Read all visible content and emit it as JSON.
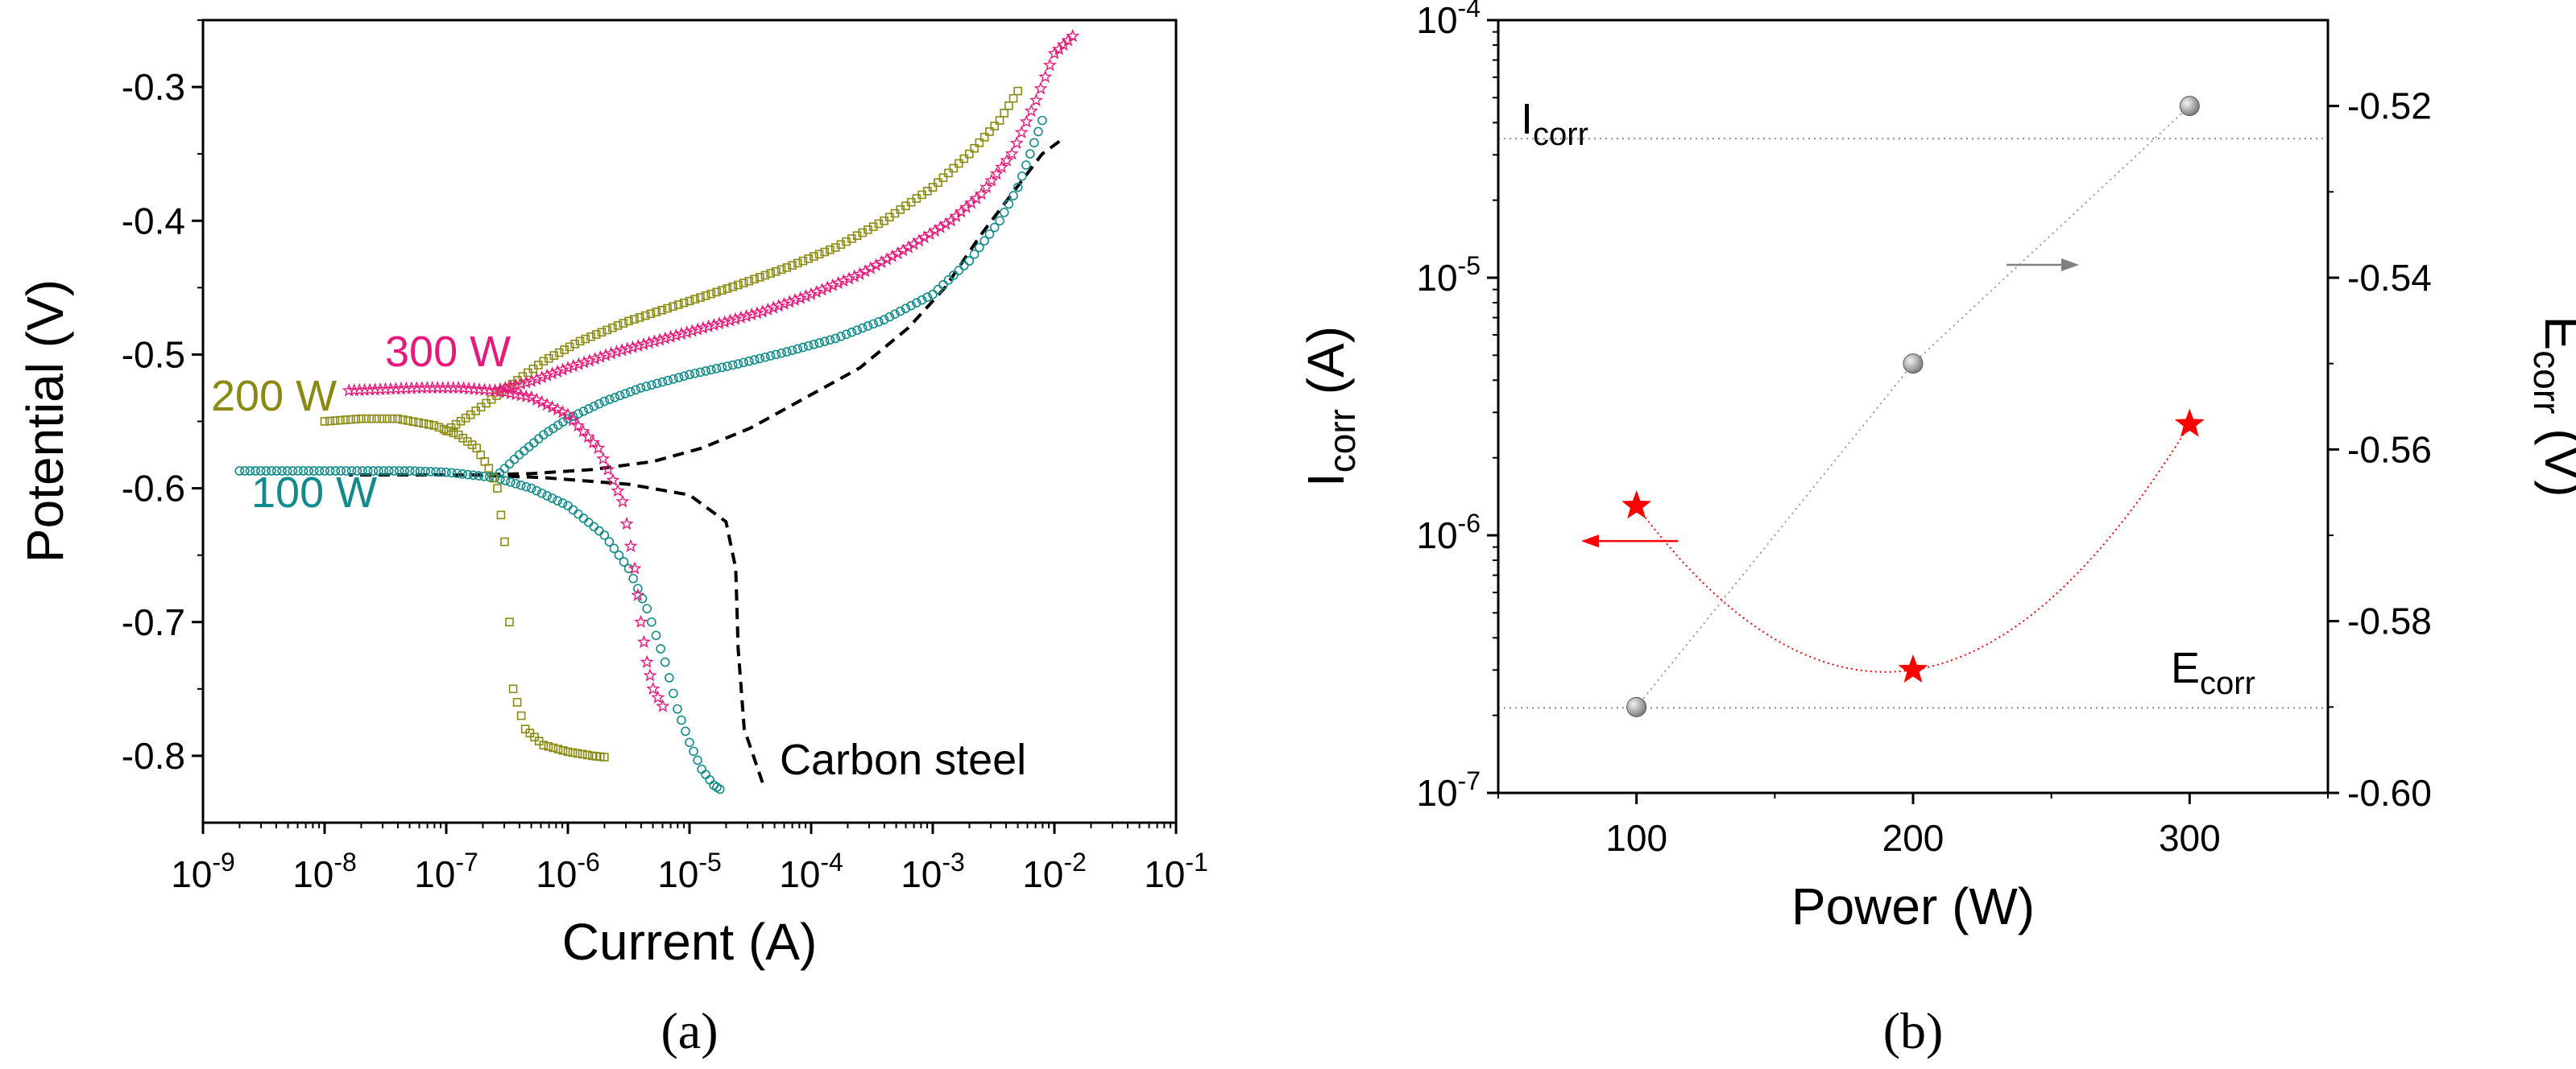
{
  "panel_labels": {
    "a": "(a)",
    "b": "(b)"
  },
  "chart_data": [
    {
      "type": "scatter",
      "id": "panel-a",
      "title": "",
      "xlabel": "Current (A)",
      "ylabel": "Potential (V)",
      "xscale": "log",
      "xlim_exp": [
        -9,
        -1
      ],
      "ylim": [
        -0.85,
        -0.25
      ],
      "x_tick_base": "10",
      "x_tick_exponents": [
        "-9",
        "-8",
        "-7",
        "-6",
        "-5",
        "-4",
        "-3",
        "-2",
        "-1"
      ],
      "y_ticks": [
        "-0.3",
        "-0.4",
        "-0.5",
        "-0.6",
        "-0.7",
        "-0.8"
      ],
      "y_tick_values": [
        -0.3,
        -0.4,
        -0.5,
        -0.6,
        -0.7,
        -0.8
      ],
      "annotations": [
        "300 W",
        "200 W",
        "100 W",
        "Carbon steel"
      ],
      "series": [
        {
          "name": "Carbon steel",
          "color": "#000000",
          "style": "dashed",
          "cathodic": [
            [
              -4.4,
              -0.82
            ],
            [
              -4.55,
              -0.78
            ],
            [
              -4.6,
              -0.72
            ],
            [
              -4.62,
              -0.66
            ],
            [
              -4.7,
              -0.625
            ],
            [
              -5.0,
              -0.605
            ],
            [
              -5.5,
              -0.597
            ],
            [
              -6.2,
              -0.592
            ],
            [
              -6.8,
              -0.59
            ],
            [
              -7.8,
              -0.59
            ]
          ],
          "anodic": [
            [
              -6.8,
              -0.59
            ],
            [
              -6.3,
              -0.589
            ],
            [
              -5.8,
              -0.586
            ],
            [
              -5.3,
              -0.58
            ],
            [
              -4.9,
              -0.57
            ],
            [
              -4.5,
              -0.555
            ],
            [
              -4.0,
              -0.53
            ],
            [
              -3.6,
              -0.51
            ],
            [
              -3.2,
              -0.48
            ],
            [
              -2.9,
              -0.45
            ],
            [
              -2.6,
              -0.41
            ],
            [
              -2.35,
              -0.38
            ],
            [
              -2.1,
              -0.35
            ],
            [
              -1.95,
              -0.34
            ]
          ]
        },
        {
          "name": "100 W",
          "color": "#118c8c",
          "marker": "circle",
          "cathodic": [
            [
              -8.7,
              -0.587
            ],
            [
              -8.0,
              -0.587
            ],
            [
              -7.6,
              -0.587
            ],
            [
              -7.3,
              -0.587
            ],
            [
              -7.0,
              -0.588
            ],
            [
              -6.6,
              -0.592
            ],
            [
              -6.3,
              -0.6
            ],
            [
              -6.0,
              -0.613
            ],
            [
              -5.7,
              -0.635
            ],
            [
              -5.5,
              -0.66
            ],
            [
              -5.35,
              -0.69
            ],
            [
              -5.2,
              -0.73
            ],
            [
              -5.1,
              -0.765
            ],
            [
              -5.0,
              -0.79
            ],
            [
              -4.9,
              -0.81
            ],
            [
              -4.8,
              -0.822
            ],
            [
              -4.75,
              -0.825
            ]
          ],
          "anodic": [
            [
              -6.6,
              -0.592
            ],
            [
              -6.4,
              -0.575
            ],
            [
              -6.2,
              -0.56
            ],
            [
              -6.0,
              -0.548
            ],
            [
              -5.7,
              -0.535
            ],
            [
              -5.4,
              -0.525
            ],
            [
              -5.0,
              -0.515
            ],
            [
              -4.6,
              -0.507
            ],
            [
              -4.2,
              -0.498
            ],
            [
              -3.8,
              -0.488
            ],
            [
              -3.4,
              -0.474
            ],
            [
              -3.0,
              -0.455
            ],
            [
              -2.7,
              -0.43
            ],
            [
              -2.45,
              -0.4
            ],
            [
              -2.3,
              -0.375
            ],
            [
              -2.2,
              -0.35
            ],
            [
              -2.1,
              -0.325
            ]
          ]
        },
        {
          "name": "200 W",
          "color": "#8a8a10",
          "marker": "square",
          "cathodic": [
            [
              -8.0,
              -0.55
            ],
            [
              -7.7,
              -0.548
            ],
            [
              -7.4,
              -0.548
            ],
            [
              -7.1,
              -0.553
            ],
            [
              -6.9,
              -0.56
            ],
            [
              -6.75,
              -0.57
            ],
            [
              -6.65,
              -0.585
            ],
            [
              -6.58,
              -0.6
            ],
            [
              -6.52,
              -0.64
            ],
            [
              -6.48,
              -0.7
            ],
            [
              -6.45,
              -0.75
            ],
            [
              -6.35,
              -0.78
            ],
            [
              -6.2,
              -0.792
            ],
            [
              -6.0,
              -0.797
            ],
            [
              -5.8,
              -0.8
            ],
            [
              -5.7,
              -0.801
            ]
          ],
          "anodic": [
            [
              -7.0,
              -0.557
            ],
            [
              -6.8,
              -0.545
            ],
            [
              -6.5,
              -0.525
            ],
            [
              -6.2,
              -0.505
            ],
            [
              -5.9,
              -0.49
            ],
            [
              -5.5,
              -0.475
            ],
            [
              -5.0,
              -0.46
            ],
            [
              -4.6,
              -0.448
            ],
            [
              -4.2,
              -0.435
            ],
            [
              -3.8,
              -0.42
            ],
            [
              -3.4,
              -0.4
            ],
            [
              -3.0,
              -0.375
            ],
            [
              -2.7,
              -0.35
            ],
            [
              -2.45,
              -0.325
            ],
            [
              -2.3,
              -0.303
            ]
          ]
        },
        {
          "name": "300 W",
          "color": "#e8197a",
          "marker": "star",
          "cathodic": [
            [
              -7.8,
              -0.527
            ],
            [
              -7.5,
              -0.526
            ],
            [
              -7.2,
              -0.525
            ],
            [
              -6.9,
              -0.525
            ],
            [
              -6.6,
              -0.527
            ],
            [
              -6.3,
              -0.532
            ],
            [
              -6.0,
              -0.545
            ],
            [
              -5.75,
              -0.57
            ],
            [
              -5.55,
              -0.61
            ],
            [
              -5.45,
              -0.66
            ],
            [
              -5.4,
              -0.7
            ],
            [
              -5.35,
              -0.73
            ],
            [
              -5.3,
              -0.75
            ],
            [
              -5.22,
              -0.763
            ]
          ],
          "anodic": [
            [
              -6.6,
              -0.527
            ],
            [
              -6.3,
              -0.52
            ],
            [
              -6.0,
              -0.51
            ],
            [
              -5.6,
              -0.498
            ],
            [
              -5.2,
              -0.488
            ],
            [
              -4.8,
              -0.478
            ],
            [
              -4.4,
              -0.468
            ],
            [
              -4.0,
              -0.455
            ],
            [
              -3.6,
              -0.44
            ],
            [
              -3.2,
              -0.42
            ],
            [
              -2.85,
              -0.4
            ],
            [
              -2.6,
              -0.38
            ],
            [
              -2.35,
              -0.35
            ],
            [
              -2.15,
              -0.31
            ],
            [
              -2.0,
              -0.275
            ],
            [
              -1.85,
              -0.262
            ]
          ]
        }
      ]
    },
    {
      "type": "scatter",
      "id": "panel-b",
      "title": "",
      "xlabel": "Power (W)",
      "ylabel_left_main": "I",
      "ylabel_left_sub": "corr",
      "ylabel_left_unit": " (A)",
      "ylabel_right_main": "E",
      "ylabel_right_sub": "corr",
      "ylabel_right_unit": " (V)",
      "xlim": [
        50,
        350
      ],
      "x_ticks": [
        "100",
        "200",
        "300"
      ],
      "x_tick_values": [
        100,
        200,
        300
      ],
      "ylim_left_exp": [
        -7,
        -4
      ],
      "y_left_tick_base": "10",
      "y_left_tick_exponents": [
        "-7",
        "-6",
        "-5",
        "-4"
      ],
      "ylim_right": [
        -0.6,
        -0.51
      ],
      "y_right_ticks": [
        "-0.52",
        "-0.54",
        "-0.56",
        "-0.58",
        "-0.60"
      ],
      "y_right_tick_values": [
        -0.52,
        -0.54,
        -0.56,
        -0.58,
        -0.6
      ],
      "label_icorr_main": "I",
      "label_icorr_sub": "corr",
      "label_ecorr_main": "E",
      "label_ecorr_sub": "corr",
      "icorr_series": {
        "name": "Icorr",
        "axis": "left",
        "marker": "star",
        "color": "#ff0000",
        "x": [
          100,
          200,
          300
        ],
        "y": [
          1.3e-06,
          3e-07,
          2.7e-06
        ]
      },
      "ecorr_series": {
        "name": "Ecorr",
        "axis": "right",
        "marker": "sphere",
        "color": "#808080",
        "x": [
          100,
          200,
          300
        ],
        "y": [
          -0.59,
          -0.55,
          -0.52
        ]
      },
      "reference_lines": {
        "icorr_level_log": -4.46,
        "ecorr_level_log": -6.67
      },
      "arrows": {
        "left_arrow_color": "#ff0000",
        "right_arrow_color": "#808080"
      }
    }
  ]
}
